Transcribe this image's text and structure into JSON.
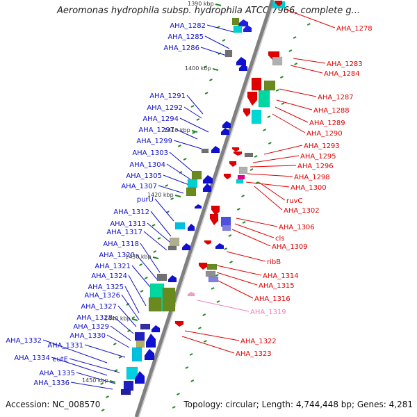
{
  "title": "Aeromonas hydrophila subsp. hydrophila ATCC 7966, complete g...",
  "accession": "Accession: NC_008570",
  "topology": "Topology: circular; Length: 4,744,448 bp; Genes: 4,281",
  "colors": {
    "left_label": "#1010c8",
    "right_label": "#e00000",
    "pink_label": "#f080c0",
    "backbone": "#808080",
    "tick": "#1a8a1a"
  },
  "kbp_ticks": [
    "1390 kbp",
    "1400 kbp",
    "1410 kbp",
    "1420 kbp",
    "1430 kbp",
    "1440 kbp",
    "1450 kbp"
  ],
  "left_genes": [
    "AHA_1282",
    "AHA_1285",
    "AHA_1286",
    "AHA_1291",
    "AHA_1292",
    "AHA_1294",
    "AHA_1297",
    "AHA_1299",
    "AHA_1303",
    "AHA_1304",
    "AHA_1305",
    "AHA_1307",
    "purU",
    "AHA_1312",
    "AHA_1313",
    "AHA_1317",
    "AHA_1318",
    "AHA_1320",
    "AHA_1321",
    "AHA_1324",
    "AHA_1325",
    "AHA_1326",
    "AHA_1327",
    "AHA_1328",
    "AHA_1329",
    "AHA_1330",
    "AHA_1332",
    "AHA_1331",
    "AHA_1334",
    "eutE",
    "AHA_1335",
    "AHA_1336"
  ],
  "right_genes": [
    "AHA_1278",
    "AHA_1283",
    "AHA_1284",
    "AHA_1287",
    "AHA_1288",
    "AHA_1289",
    "AHA_1290",
    "AHA_1293",
    "AHA_1295",
    "AHA_1296",
    "AHA_1298",
    "AHA_1300",
    "ruvC",
    "AHA_1302",
    "AHA_1306",
    "cls",
    "AHA_1309",
    "ribB",
    "AHA_1314",
    "AHA_1315",
    "AHA_1316",
    "AHA_1319",
    "AHA_1322",
    "AHA_1323"
  ]
}
